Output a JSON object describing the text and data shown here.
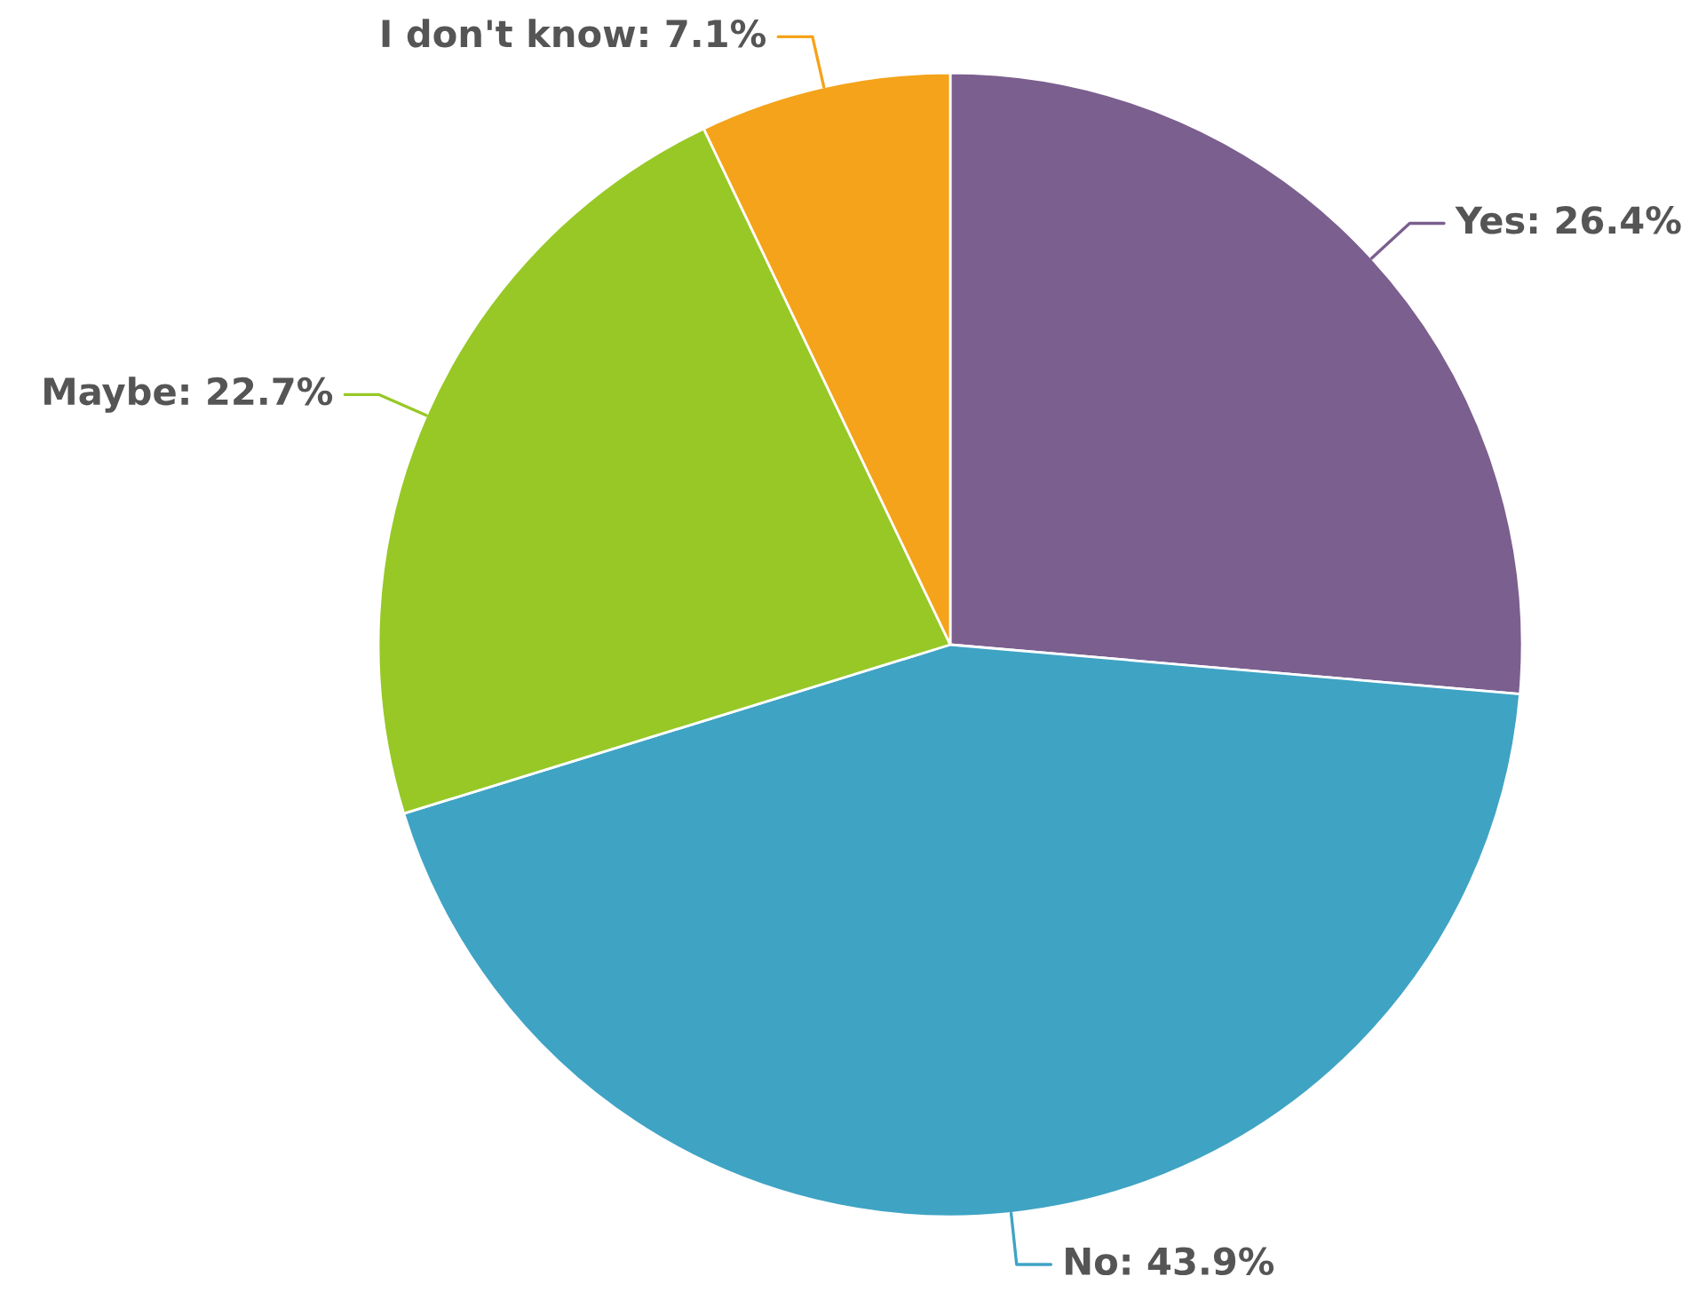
{
  "chart_data": {
    "type": "pie",
    "categories": [
      "Yes",
      "No",
      "Maybe",
      "I don't know"
    ],
    "values": [
      26.4,
      43.9,
      22.7,
      7.1
    ],
    "value_labels": [
      "26.4%",
      "43.9%",
      "22.7%",
      "7.1%"
    ],
    "colors": [
      "#7b5f8f",
      "#3fa3c4",
      "#97c826",
      "#f4a31a"
    ],
    "legend": false
  }
}
